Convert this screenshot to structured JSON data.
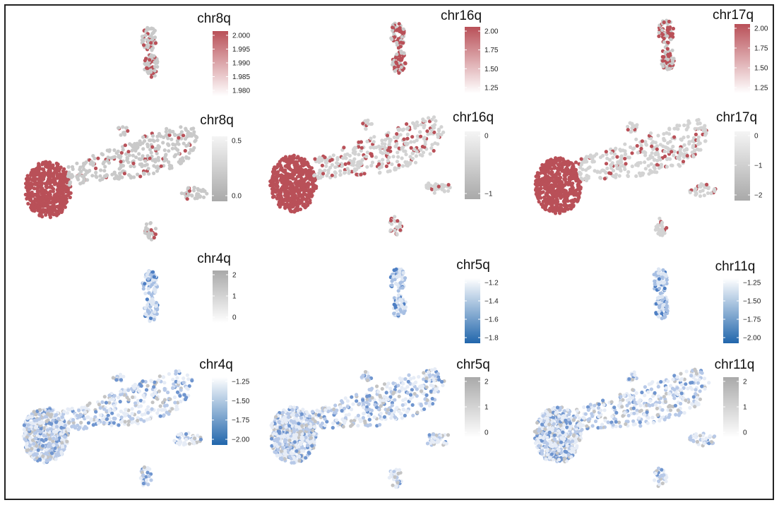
{
  "chart_data": [
    {
      "type": "scatter",
      "panel": "top-left-small",
      "title": "chr8q",
      "legend": {
        "ticks": [
          "2.000",
          "1.995",
          "1.990",
          "1.985",
          "1.980"
        ],
        "colors": [
          "#b95058",
          "#ffffff"
        ]
      },
      "point_colors": [
        "#c9c9c9",
        "#b95058"
      ],
      "highlight_fraction": 0.25
    },
    {
      "type": "scatter",
      "panel": "top-middle-small",
      "title": "chr16q",
      "legend": {
        "ticks": [
          "2.00",
          "1.75",
          "1.50",
          "1.25"
        ],
        "colors": [
          "#b95058",
          "#ffffff"
        ]
      },
      "point_colors": [
        "#c9c9c9",
        "#b95058"
      ],
      "highlight_fraction": 0.55
    },
    {
      "type": "scatter",
      "panel": "top-right-small",
      "title": "chr17q",
      "legend": {
        "ticks": [
          "2.00",
          "1.75",
          "1.50",
          "1.25"
        ],
        "colors": [
          "#b95058",
          "#ffffff"
        ]
      },
      "point_colors": [
        "#c9c9c9",
        "#b95058"
      ],
      "highlight_fraction": 0.4
    },
    {
      "type": "scatter",
      "panel": "upper-left-main",
      "title": "chr8q",
      "legend": {
        "ticks": [
          "0.5",
          "0.0"
        ],
        "colors": [
          "#f5f5f5",
          "#a9a9a9"
        ]
      },
      "point_colors": [
        "#c9c9c9",
        "#b95058"
      ],
      "highlight_fraction": 0.12
    },
    {
      "type": "scatter",
      "panel": "upper-middle-main",
      "title": "chr16q",
      "legend": {
        "ticks": [
          "0",
          "−1"
        ],
        "colors": [
          "#f5f5f5",
          "#a9a9a9"
        ]
      },
      "point_colors": [
        "#d3d3d3",
        "#b95058"
      ],
      "highlight_fraction": 0.22
    },
    {
      "type": "scatter",
      "panel": "upper-right-main",
      "title": "chr17q",
      "legend": {
        "ticks": [
          "0",
          "−1",
          "−2"
        ],
        "colors": [
          "#f5f5f5",
          "#a9a9a9"
        ]
      },
      "point_colors": [
        "#d3d3d3",
        "#b95058"
      ],
      "highlight_fraction": 0.18
    },
    {
      "type": "scatter",
      "panel": "lower-left-small",
      "title": "chr4q",
      "legend": {
        "ticks": [
          "2",
          "1",
          "0"
        ],
        "colors": [
          "#a9a9a9",
          "#ffffff"
        ]
      },
      "point_colors": [
        "#dde6f3",
        "#a7bfe3",
        "#4e7fc4"
      ]
    },
    {
      "type": "scatter",
      "panel": "lower-middle-small",
      "title": "chr5q",
      "legend": {
        "ticks": [
          "−1.2",
          "−1.4",
          "−1.6",
          "−1.8"
        ],
        "colors": [
          "#ffffff",
          "#2166ac"
        ]
      },
      "point_colors": [
        "#dde6f3",
        "#a7bfe3",
        "#4e7fc4"
      ]
    },
    {
      "type": "scatter",
      "panel": "lower-right-small",
      "title": "chr11q",
      "legend": {
        "ticks": [
          "−1.25",
          "−1.50",
          "−1.75",
          "−2.00"
        ],
        "colors": [
          "#ffffff",
          "#2166ac"
        ]
      },
      "point_colors": [
        "#dde6f3",
        "#a7bfe3",
        "#4e7fc4"
      ]
    },
    {
      "type": "scatter",
      "panel": "bottom-left-main",
      "title": "chr4q",
      "legend": {
        "ticks": [
          "−1.25",
          "−1.50",
          "−1.75",
          "−2.00"
        ],
        "colors": [
          "#ffffff",
          "#2166ac"
        ]
      },
      "point_colors": [
        "#e6ecf6",
        "#b7c9e8",
        "#6f95cf",
        "#c4c4c4"
      ]
    },
    {
      "type": "scatter",
      "panel": "bottom-middle-main",
      "title": "chr5q",
      "legend": {
        "ticks": [
          "2",
          "1",
          "0"
        ],
        "colors": [
          "#a9a9a9",
          "#ffffff"
        ]
      },
      "point_colors": [
        "#e6ecf6",
        "#b7c9e8",
        "#6f95cf",
        "#c4c4c4"
      ]
    },
    {
      "type": "scatter",
      "panel": "bottom-right-main",
      "title": "chr11q",
      "legend": {
        "ticks": [
          "2",
          "1",
          "0"
        ],
        "colors": [
          "#a9a9a9",
          "#ffffff"
        ]
      },
      "point_colors": [
        "#e6ecf6",
        "#b7c9e8",
        "#6f95cf",
        "#c4c4c4"
      ]
    }
  ]
}
